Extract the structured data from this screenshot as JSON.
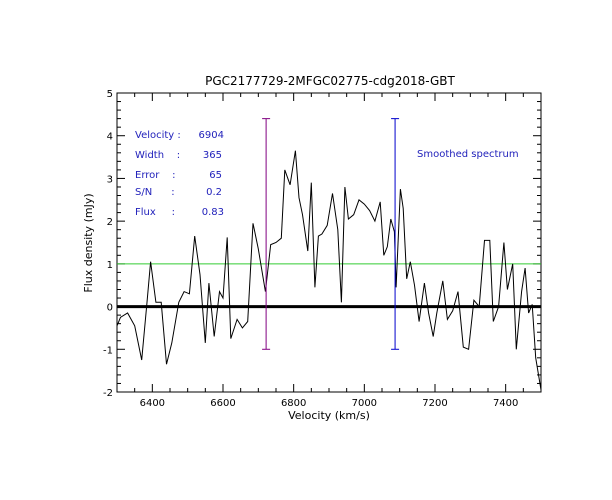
{
  "chart_data": {
    "type": "line",
    "title": "PGC2177729-2MFGC02775-cdg2018-GBT",
    "xlabel": "Velocity (km/s)",
    "ylabel": "Flux density (mJy)",
    "xlim": [
      6300,
      7500
    ],
    "ylim": [
      -2,
      5
    ],
    "x_ticks": [
      6400,
      6600,
      6800,
      7000,
      7200,
      7400
    ],
    "y_ticks": [
      -2,
      -1,
      0,
      1,
      2,
      3,
      4,
      5
    ],
    "grid": false,
    "legend": "none",
    "colors": {
      "spectrum": "#000000",
      "zero_line": "#000000",
      "threshold_line": "#33cc33",
      "marker_left": "#800080",
      "marker_right": "#0000cc",
      "annotation": "#2222bb"
    },
    "series": [
      {
        "values": [
          {
            "x": 6300,
            "y": -0.45
          },
          {
            "x": 6310,
            "y": -0.25
          },
          {
            "x": 6330,
            "y": -0.15
          },
          {
            "x": 6350,
            "y": -0.45
          },
          {
            "x": 6370,
            "y": -1.25
          },
          {
            "x": 6385,
            "y": 0.1
          },
          {
            "x": 6395,
            "y": 1.05
          },
          {
            "x": 6410,
            "y": 0.1
          },
          {
            "x": 6425,
            "y": 0.1
          },
          {
            "x": 6440,
            "y": -1.35
          },
          {
            "x": 6455,
            "y": -0.85
          },
          {
            "x": 6475,
            "y": 0.1
          },
          {
            "x": 6490,
            "y": 0.35
          },
          {
            "x": 6505,
            "y": 0.3
          },
          {
            "x": 6520,
            "y": 1.65
          },
          {
            "x": 6535,
            "y": 0.75
          },
          {
            "x": 6550,
            "y": -0.85
          },
          {
            "x": 6560,
            "y": 0.55
          },
          {
            "x": 6575,
            "y": -0.7
          },
          {
            "x": 6590,
            "y": 0.35
          },
          {
            "x": 6600,
            "y": 0.2
          },
          {
            "x": 6612,
            "y": 1.62
          },
          {
            "x": 6622,
            "y": -0.75
          },
          {
            "x": 6640,
            "y": -0.3
          },
          {
            "x": 6655,
            "y": -0.5
          },
          {
            "x": 6670,
            "y": -0.35
          },
          {
            "x": 6685,
            "y": 1.95
          },
          {
            "x": 6700,
            "y": 1.35
          },
          {
            "x": 6720,
            "y": 0.35
          },
          {
            "x": 6735,
            "y": 1.45
          },
          {
            "x": 6750,
            "y": 1.5
          },
          {
            "x": 6765,
            "y": 1.6
          },
          {
            "x": 6775,
            "y": 3.2
          },
          {
            "x": 6790,
            "y": 2.85
          },
          {
            "x": 6805,
            "y": 3.65
          },
          {
            "x": 6815,
            "y": 2.55
          },
          {
            "x": 6825,
            "y": 2.15
          },
          {
            "x": 6840,
            "y": 1.3
          },
          {
            "x": 6850,
            "y": 2.9
          },
          {
            "x": 6860,
            "y": 0.45
          },
          {
            "x": 6870,
            "y": 1.65
          },
          {
            "x": 6880,
            "y": 1.7
          },
          {
            "x": 6895,
            "y": 1.9
          },
          {
            "x": 6910,
            "y": 2.65
          },
          {
            "x": 6925,
            "y": 1.8
          },
          {
            "x": 6935,
            "y": 0.1
          },
          {
            "x": 6945,
            "y": 2.8
          },
          {
            "x": 6955,
            "y": 2.05
          },
          {
            "x": 6970,
            "y": 2.15
          },
          {
            "x": 6985,
            "y": 2.5
          },
          {
            "x": 7000,
            "y": 2.4
          },
          {
            "x": 7015,
            "y": 2.25
          },
          {
            "x": 7030,
            "y": 2.0
          },
          {
            "x": 7045,
            "y": 2.45
          },
          {
            "x": 7055,
            "y": 1.2
          },
          {
            "x": 7065,
            "y": 1.4
          },
          {
            "x": 7075,
            "y": 2.05
          },
          {
            "x": 7085,
            "y": 1.75
          },
          {
            "x": 7090,
            "y": 0.45
          },
          {
            "x": 7102,
            "y": 2.75
          },
          {
            "x": 7110,
            "y": 2.3
          },
          {
            "x": 7120,
            "y": 0.65
          },
          {
            "x": 7130,
            "y": 1.05
          },
          {
            "x": 7142,
            "y": 0.5
          },
          {
            "x": 7155,
            "y": -0.35
          },
          {
            "x": 7170,
            "y": 0.55
          },
          {
            "x": 7182,
            "y": -0.15
          },
          {
            "x": 7195,
            "y": -0.7
          },
          {
            "x": 7205,
            "y": -0.15
          },
          {
            "x": 7222,
            "y": 0.6
          },
          {
            "x": 7235,
            "y": -0.3
          },
          {
            "x": 7250,
            "y": -0.1
          },
          {
            "x": 7265,
            "y": 0.35
          },
          {
            "x": 7280,
            "y": -0.95
          },
          {
            "x": 7295,
            "y": -1.0
          },
          {
            "x": 7310,
            "y": 0.15
          },
          {
            "x": 7325,
            "y": 0.0
          },
          {
            "x": 7340,
            "y": 1.55
          },
          {
            "x": 7355,
            "y": 1.55
          },
          {
            "x": 7365,
            "y": -0.35
          },
          {
            "x": 7380,
            "y": 0.0
          },
          {
            "x": 7395,
            "y": 1.5
          },
          {
            "x": 7405,
            "y": 0.4
          },
          {
            "x": 7420,
            "y": 1.0
          },
          {
            "x": 7430,
            "y": -1.0
          },
          {
            "x": 7445,
            "y": 0.35
          },
          {
            "x": 7455,
            "y": 0.9
          },
          {
            "x": 7465,
            "y": -0.15
          },
          {
            "x": 7475,
            "y": 0.05
          },
          {
            "x": 7485,
            "y": -1.2
          },
          {
            "x": 7500,
            "y": -1.95
          }
        ]
      }
    ],
    "reference_lines": {
      "zero_y": 0,
      "threshold_y": 1.0
    },
    "markers": [
      {
        "x": 6722,
        "y_low": -1.0,
        "y_high": 4.4
      },
      {
        "x": 7087,
        "y_low": -1.0,
        "y_high": 4.4
      }
    ],
    "annotations": {
      "velocity": {
        "label": "Velocity :",
        "value": "6904"
      },
      "width": {
        "label": "Width    :",
        "value": "365"
      },
      "error": {
        "label": "Error    :",
        "value": "65"
      },
      "sn": {
        "label": "S/N      :",
        "value": "0.2"
      },
      "flux": {
        "label": "Flux     :",
        "value": "0.83"
      },
      "smoothed": "Smoothed spectrum"
    }
  }
}
